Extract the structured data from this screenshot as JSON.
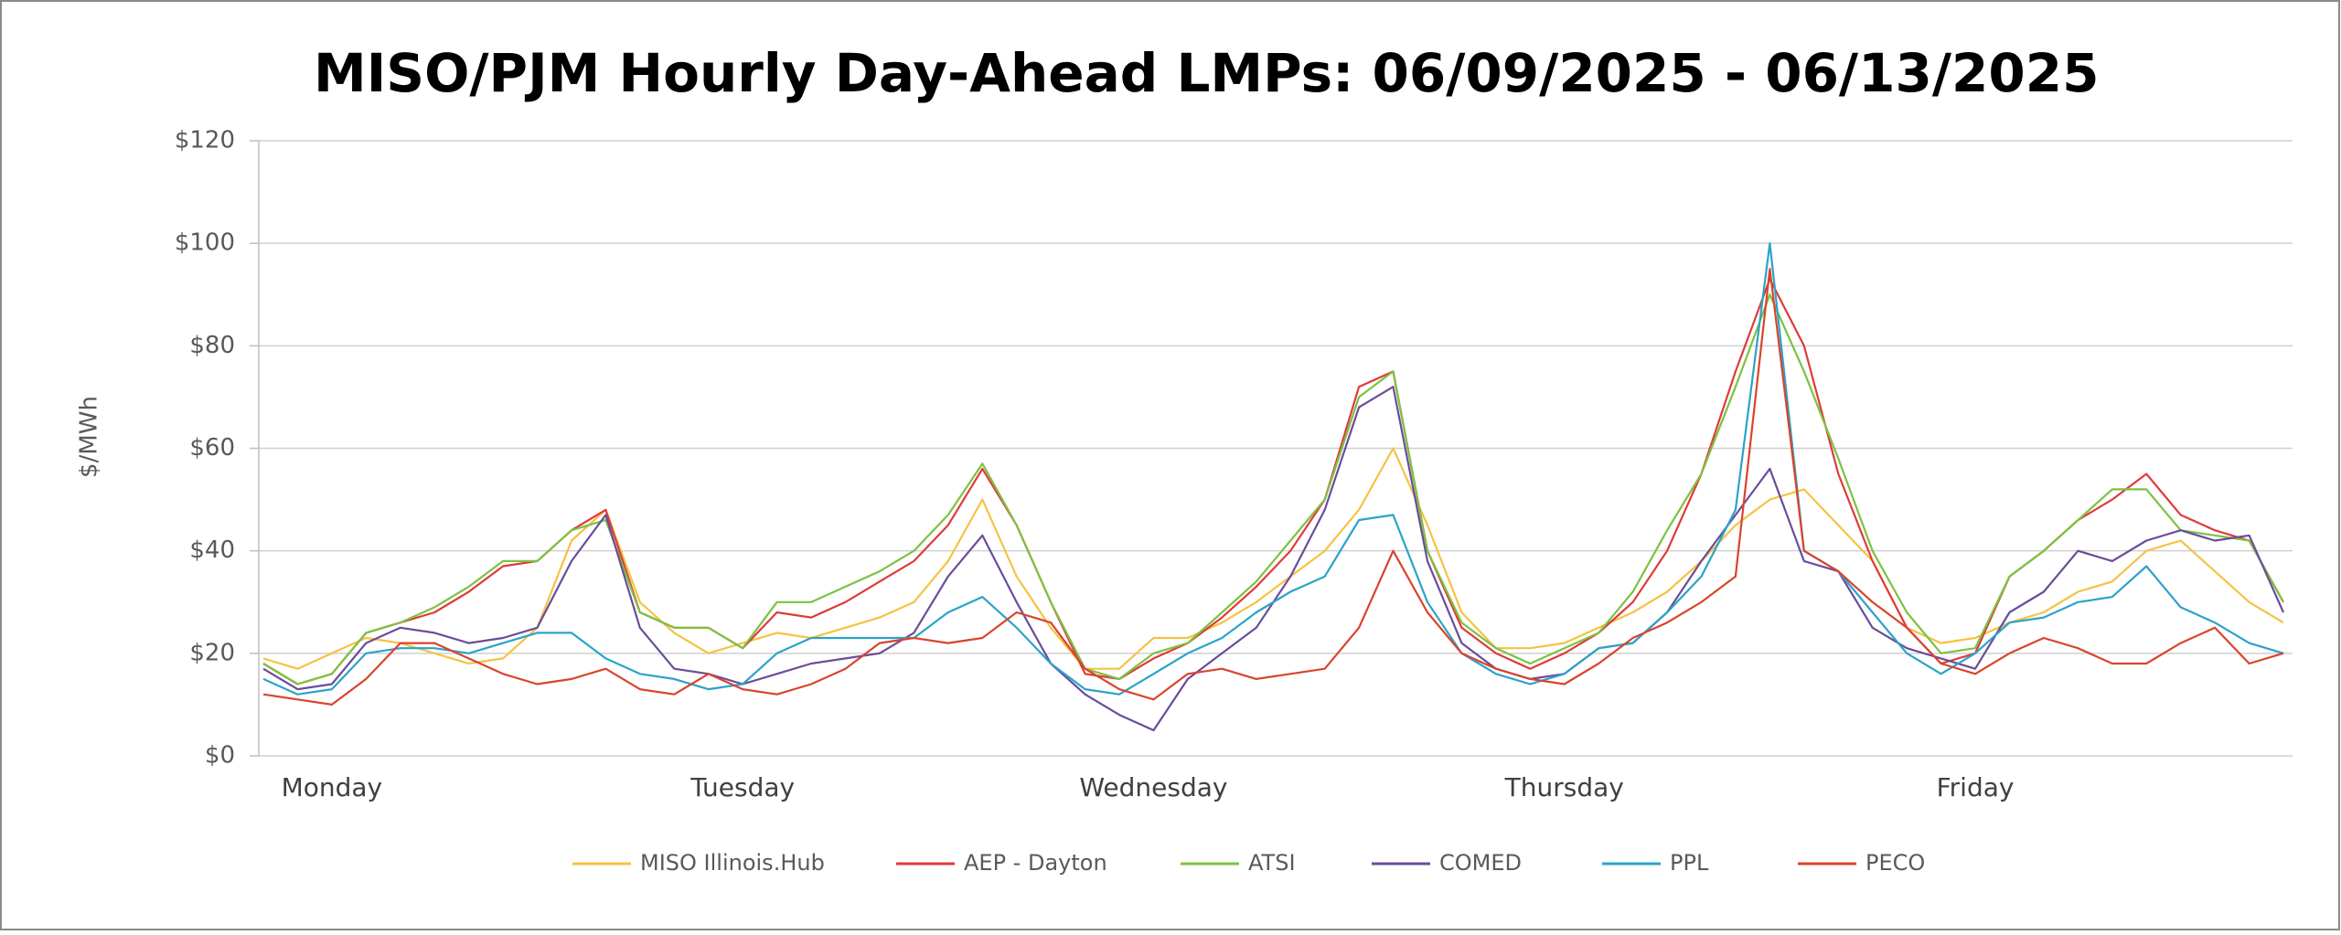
{
  "chart_data": {
    "type": "line",
    "title": "MISO/PJM Hourly Day-Ahead LMPs: 06/09/2025 - 06/13/2025",
    "y_label": "$/MWh",
    "categories": [
      null,
      null,
      "Monday",
      null,
      null,
      null,
      null,
      null,
      null,
      null,
      null,
      null,
      null,
      null,
      "Tuesday",
      null,
      null,
      null,
      null,
      null,
      null,
      null,
      null,
      null,
      null,
      null,
      "Wednesday",
      null,
      null,
      null,
      null,
      null,
      null,
      null,
      null,
      null,
      null,
      null,
      "Thursday",
      null,
      null,
      null,
      null,
      null,
      null,
      null,
      null,
      null,
      null,
      null,
      "Friday",
      null,
      null,
      null,
      null,
      null,
      null,
      null,
      null,
      null
    ],
    "ylim": [
      0,
      120
    ],
    "yticks": [
      {
        "value": 0,
        "label": "$0"
      },
      {
        "value": 20,
        "label": "$20"
      },
      {
        "value": 40,
        "label": "$40"
      },
      {
        "value": 60,
        "label": "$60"
      },
      {
        "value": 80,
        "label": "$80"
      },
      {
        "value": 100,
        "label": "$100"
      },
      {
        "value": 120,
        "label": "$120"
      }
    ],
    "grid": true,
    "legend": "bottom",
    "series": [
      {
        "name": "MISO Illinois.Hub",
        "color": "#f5c342",
        "values": [
          19,
          17,
          20,
          23,
          22,
          20,
          18,
          19,
          25,
          42,
          48,
          30,
          24,
          20,
          22,
          24,
          23,
          25,
          27,
          30,
          38,
          50,
          35,
          25,
          17,
          17,
          23,
          23,
          26,
          30,
          35,
          40,
          48,
          60,
          45,
          28,
          21,
          21,
          22,
          25,
          28,
          32,
          38,
          45,
          50,
          52,
          45,
          38,
          25,
          22,
          23,
          26,
          28,
          32,
          34,
          40,
          42,
          36,
          30,
          26
        ]
      },
      {
        "name": "AEP - Dayton",
        "color": "#e03a3a",
        "values": [
          18,
          14,
          16,
          24,
          26,
          28,
          32,
          37,
          38,
          44,
          48,
          28,
          25,
          25,
          21,
          28,
          27,
          30,
          34,
          38,
          45,
          56,
          45,
          30,
          16,
          15,
          19,
          22,
          27,
          33,
          40,
          50,
          72,
          75,
          40,
          25,
          20,
          17,
          20,
          24,
          30,
          40,
          55,
          75,
          93,
          80,
          55,
          38,
          25,
          18,
          20,
          35,
          40,
          46,
          50,
          55,
          47,
          44,
          42,
          30
        ]
      },
      {
        "name": "ATSI",
        "color": "#7cc242",
        "values": [
          18,
          14,
          16,
          24,
          26,
          29,
          33,
          38,
          38,
          44,
          46,
          28,
          25,
          25,
          21,
          30,
          30,
          33,
          36,
          40,
          47,
          57,
          45,
          30,
          17,
          15,
          20,
          22,
          28,
          34,
          42,
          50,
          70,
          75,
          40,
          26,
          21,
          18,
          21,
          24,
          32,
          44,
          55,
          72,
          90,
          75,
          58,
          40,
          28,
          20,
          21,
          35,
          40,
          46,
          52,
          52,
          44,
          43,
          42,
          30
        ]
      },
      {
        "name": "COMED",
        "color": "#6b4c9a",
        "values": [
          17,
          13,
          14,
          22,
          25,
          24,
          22,
          23,
          25,
          38,
          47,
          25,
          17,
          16,
          14,
          16,
          18,
          19,
          20,
          24,
          35,
          43,
          30,
          18,
          12,
          8,
          5,
          15,
          20,
          25,
          35,
          48,
          68,
          72,
          38,
          22,
          17,
          15,
          16,
          21,
          22,
          28,
          38,
          47,
          56,
          38,
          36,
          25,
          21,
          19,
          17,
          28,
          32,
          40,
          38,
          42,
          44,
          42,
          43,
          28
        ]
      },
      {
        "name": "PPL",
        "color": "#2ba3c9",
        "values": [
          15,
          12,
          13,
          20,
          21,
          21,
          20,
          22,
          24,
          24,
          19,
          16,
          15,
          13,
          14,
          20,
          23,
          23,
          23,
          23,
          28,
          31,
          25,
          18,
          13,
          12,
          16,
          20,
          23,
          28,
          32,
          35,
          46,
          47,
          30,
          20,
          16,
          14,
          16,
          21,
          22,
          28,
          35,
          48,
          100,
          40,
          36,
          28,
          20,
          16,
          20,
          26,
          27,
          30,
          31,
          37,
          29,
          26,
          22,
          20
        ]
      },
      {
        "name": "PECO",
        "color": "#d9442c",
        "values": [
          12,
          11,
          10,
          15,
          22,
          22,
          19,
          16,
          14,
          15,
          17,
          13,
          12,
          16,
          13,
          12,
          14,
          17,
          22,
          23,
          22,
          23,
          28,
          26,
          17,
          13,
          11,
          16,
          17,
          15,
          16,
          17,
          25,
          40,
          28,
          20,
          17,
          15,
          14,
          18,
          23,
          26,
          30,
          35,
          95,
          40,
          36,
          30,
          25,
          18,
          16,
          20,
          23,
          21,
          18,
          18,
          22,
          25,
          18,
          20
        ]
      }
    ]
  }
}
